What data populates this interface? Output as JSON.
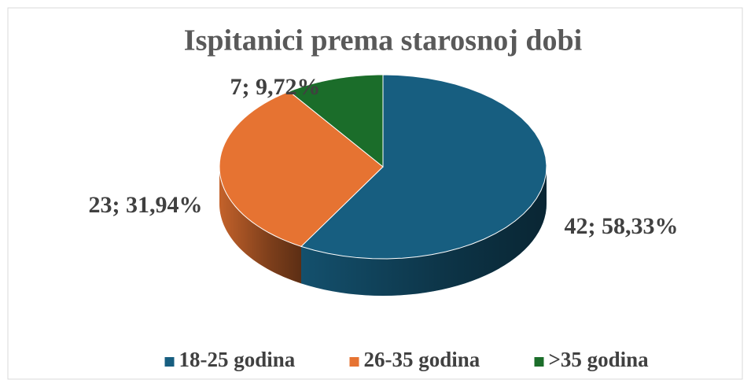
{
  "chart_data": {
    "type": "pie3d",
    "title": "Ispitanici prema starosnoj dobi",
    "categories": [
      "18-25 godina",
      "26-35 godina",
      ">35 godina"
    ],
    "values": [
      42,
      23,
      7
    ],
    "value_labels": [
      "42; 58,33%",
      "23; 31,94%",
      "7; 9,72%"
    ],
    "colors": [
      "#175e80",
      "#e67332",
      "#1b6d2a"
    ],
    "legend": "bottom"
  }
}
